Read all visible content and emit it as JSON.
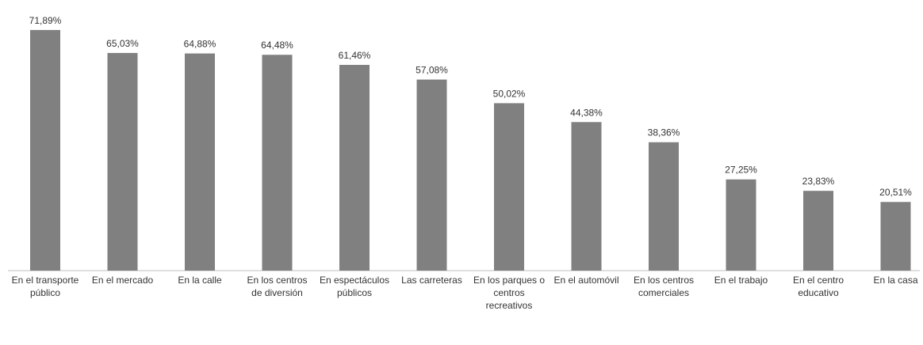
{
  "chart_data": {
    "type": "bar",
    "categories": [
      "En el transporte público",
      "En el mercado",
      "En la calle",
      "En los centros de diversión",
      "En espectáculos públicos",
      "Las carreteras",
      "En los parques o centros recreativos",
      "En el automóvil",
      "En los centros comerciales",
      "En el trabajo",
      "En el centro educativo",
      "En la casa"
    ],
    "values": [
      71.89,
      65.03,
      64.88,
      64.48,
      61.46,
      57.08,
      50.02,
      44.38,
      38.36,
      27.25,
      23.83,
      20.51
    ],
    "value_labels": [
      "71,89%",
      "65,03%",
      "64,88%",
      "64,48%",
      "61,46%",
      "57,08%",
      "50,02%",
      "44,38%",
      "38,36%",
      "27,25%",
      "23,83%",
      "20,51%"
    ],
    "color": "#808080"
  }
}
